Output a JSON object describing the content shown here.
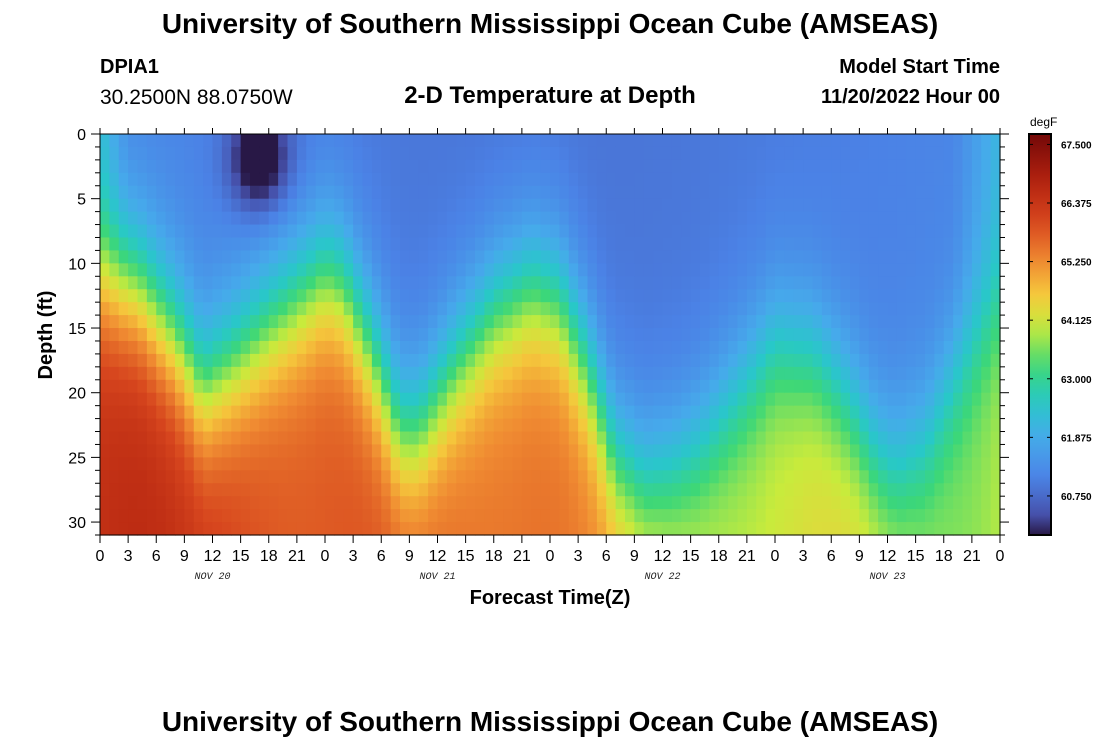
{
  "header": {
    "title": "University of Southern Mississippi Ocean Cube (AMSEAS)",
    "station_id": "DPIA1",
    "coordinates": "30.2500N  88.0750W",
    "chart_title": "2-D Temperature at Depth",
    "model_start_label": "Model Start Time",
    "model_start_value": "11/20/2022 Hour 00"
  },
  "footer": {
    "title": "University of Southern Mississippi Ocean Cube (AMSEAS)"
  },
  "chart_data": {
    "type": "heatmap",
    "title": "2-D Temperature at Depth",
    "xlabel": "Forecast Time(Z)",
    "ylabel": "Depth (ft)",
    "x_tick_labels": [
      "0",
      "3",
      "6",
      "9",
      "12",
      "15",
      "18",
      "21",
      "0",
      "3",
      "6",
      "9",
      "12",
      "15",
      "18",
      "21",
      "0",
      "3",
      "6",
      "9",
      "12",
      "15",
      "18",
      "21",
      "0",
      "3",
      "6",
      "9",
      "12",
      "15",
      "18",
      "21",
      "0"
    ],
    "x_range_hours": [
      0,
      96
    ],
    "date_labels": [
      {
        "label": "NOV 20",
        "hour": 12
      },
      {
        "label": "NOV 21",
        "hour": 36
      },
      {
        "label": "NOV 22",
        "hour": 60
      },
      {
        "label": "NOV 23",
        "hour": 84
      }
    ],
    "y_ticks": [
      0,
      5,
      10,
      15,
      20,
      25,
      30
    ],
    "y_range_ft": [
      0,
      31
    ],
    "colorbar": {
      "unit": "degF",
      "min": 60.0,
      "max": 67.7,
      "labels": [
        "67.500",
        "66.375",
        "65.250",
        "64.125",
        "63.000",
        "61.875",
        "60.750"
      ]
    },
    "field_description": "temperature (degF) by forecast hour and depth; warm bottom layer with tidal oscillation of the thermocline",
    "thermocline_depth_ft": [
      {
        "hour": 0,
        "depth": 11
      },
      {
        "hour": 4,
        "depth": 12
      },
      {
        "hour": 8,
        "depth": 16
      },
      {
        "hour": 11,
        "depth": 20
      },
      {
        "hour": 14,
        "depth": 18
      },
      {
        "hour": 18,
        "depth": 15
      },
      {
        "hour": 21,
        "depth": 13
      },
      {
        "hour": 24,
        "depth": 11
      },
      {
        "hour": 26,
        "depth": 12
      },
      {
        "hour": 29,
        "depth": 17
      },
      {
        "hour": 32,
        "depth": 23
      },
      {
        "hour": 34,
        "depth": 23
      },
      {
        "hour": 38,
        "depth": 18
      },
      {
        "hour": 42,
        "depth": 14
      },
      {
        "hour": 46,
        "depth": 12
      },
      {
        "hour": 49,
        "depth": 13
      },
      {
        "hour": 52,
        "depth": 18
      },
      {
        "hour": 55,
        "depth": 25
      },
      {
        "hour": 58,
        "depth": 27
      },
      {
        "hour": 61,
        "depth": 26
      },
      {
        "hour": 64,
        "depth": 24
      },
      {
        "hour": 68,
        "depth": 20
      },
      {
        "hour": 72,
        "depth": 16
      },
      {
        "hour": 76,
        "depth": 17
      },
      {
        "hour": 80,
        "depth": 21
      },
      {
        "hour": 83,
        "depth": 25
      },
      {
        "hour": 85,
        "depth": 26
      },
      {
        "hour": 88,
        "depth": 24
      },
      {
        "hour": 91,
        "depth": 19
      },
      {
        "hour": 94,
        "depth": 15
      },
      {
        "hour": 96,
        "depth": 13
      }
    ],
    "cold_core": {
      "hour": 17,
      "depth": 2,
      "temp": 60.0
    }
  }
}
